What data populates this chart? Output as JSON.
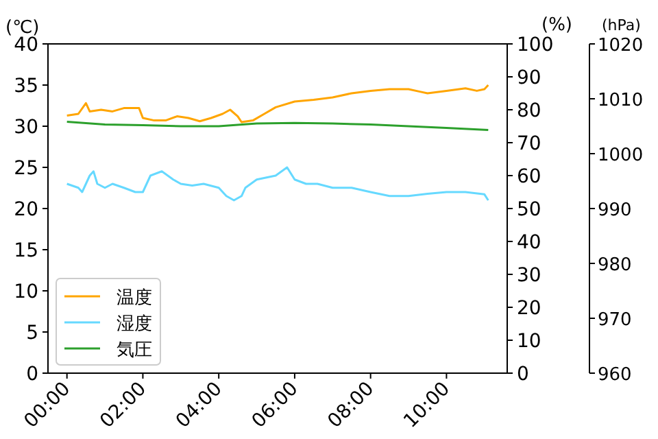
{
  "chart_data": {
    "type": "line",
    "ylabel": "(℃)",
    "y2label": "(%)",
    "y3label": "(hPa)",
    "xlim": [
      -0.5,
      11.6
    ],
    "xticks": [
      {
        "value": 0,
        "label": "00:00"
      },
      {
        "value": 2,
        "label": "02:00"
      },
      {
        "value": 4,
        "label": "04:00"
      },
      {
        "value": 6,
        "label": "06:00"
      },
      {
        "value": 8,
        "label": "08:00"
      },
      {
        "value": 10,
        "label": "10:00"
      }
    ],
    "ylim": [
      0,
      40
    ],
    "yticks": [
      0,
      5,
      10,
      15,
      20,
      25,
      30,
      35,
      40
    ],
    "y2lim": [
      0,
      100
    ],
    "y2ticks": [
      0,
      10,
      20,
      30,
      40,
      50,
      60,
      70,
      80,
      90,
      100
    ],
    "y3lim": [
      960,
      1020
    ],
    "y3ticks": [
      960,
      970,
      980,
      990,
      1000,
      1010,
      1020
    ],
    "grid": false,
    "legend": "bottom left",
    "series": [
      {
        "name": "温度",
        "color": "#ffa500",
        "x": [
          0,
          0.3,
          0.5,
          0.6,
          0.9,
          1.2,
          1.5,
          1.9,
          2.0,
          2.3,
          2.6,
          2.9,
          3.2,
          3.5,
          3.8,
          4.1,
          4.3,
          4.5,
          4.6,
          4.9,
          5.2,
          5.5,
          6.0,
          6.5,
          7.0,
          7.5,
          8.0,
          8.5,
          9.0,
          9.3,
          9.5,
          10.0,
          10.5,
          10.8,
          11.0,
          11.1
        ],
        "values": [
          31.3,
          31.5,
          32.8,
          31.8,
          32.0,
          31.8,
          32.2,
          32.2,
          31.0,
          30.7,
          30.7,
          31.2,
          31.0,
          30.6,
          31.0,
          31.5,
          32.0,
          31.2,
          30.5,
          30.7,
          31.5,
          32.3,
          33.0,
          33.2,
          33.5,
          34.0,
          34.3,
          34.5,
          34.5,
          34.2,
          34.0,
          34.3,
          34.6,
          34.3,
          34.5,
          35.0
        ]
      },
      {
        "name": "湿度",
        "color": "#66d9ff",
        "axis": "y2",
        "x": [
          0,
          0.3,
          0.4,
          0.6,
          0.7,
          0.8,
          1.0,
          1.2,
          1.5,
          1.8,
          2.0,
          2.2,
          2.5,
          2.8,
          3.0,
          3.3,
          3.6,
          4.0,
          4.2,
          4.4,
          4.6,
          4.7,
          5.0,
          5.5,
          5.8,
          6.0,
          6.3,
          6.6,
          7.0,
          7.5,
          8.0,
          8.5,
          9.0,
          9.5,
          10.0,
          10.5,
          11.0,
          11.1
        ],
        "values": [
          57.5,
          56.3,
          55,
          60,
          61.3,
          57.5,
          56.3,
          57.5,
          56.3,
          55,
          55,
          60,
          61.3,
          58.8,
          57.5,
          57,
          57.5,
          56.3,
          53.8,
          52.5,
          53.8,
          56.3,
          58.8,
          60,
          62.5,
          58.8,
          57.5,
          57.5,
          56.3,
          56.3,
          55,
          53.8,
          53.8,
          54.5,
          55,
          55,
          54.3,
          52.5
        ]
      },
      {
        "name": "気圧",
        "color": "#2ca02c",
        "axis": "y3",
        "x": [
          0,
          1,
          2,
          3,
          4,
          5,
          6,
          7,
          8,
          9,
          10,
          11.1
        ],
        "values": [
          1005.8,
          1005.3,
          1005.2,
          1005,
          1005,
          1005.5,
          1005.6,
          1005.5,
          1005.3,
          1005.0,
          1004.7,
          1004.3
        ]
      }
    ]
  }
}
